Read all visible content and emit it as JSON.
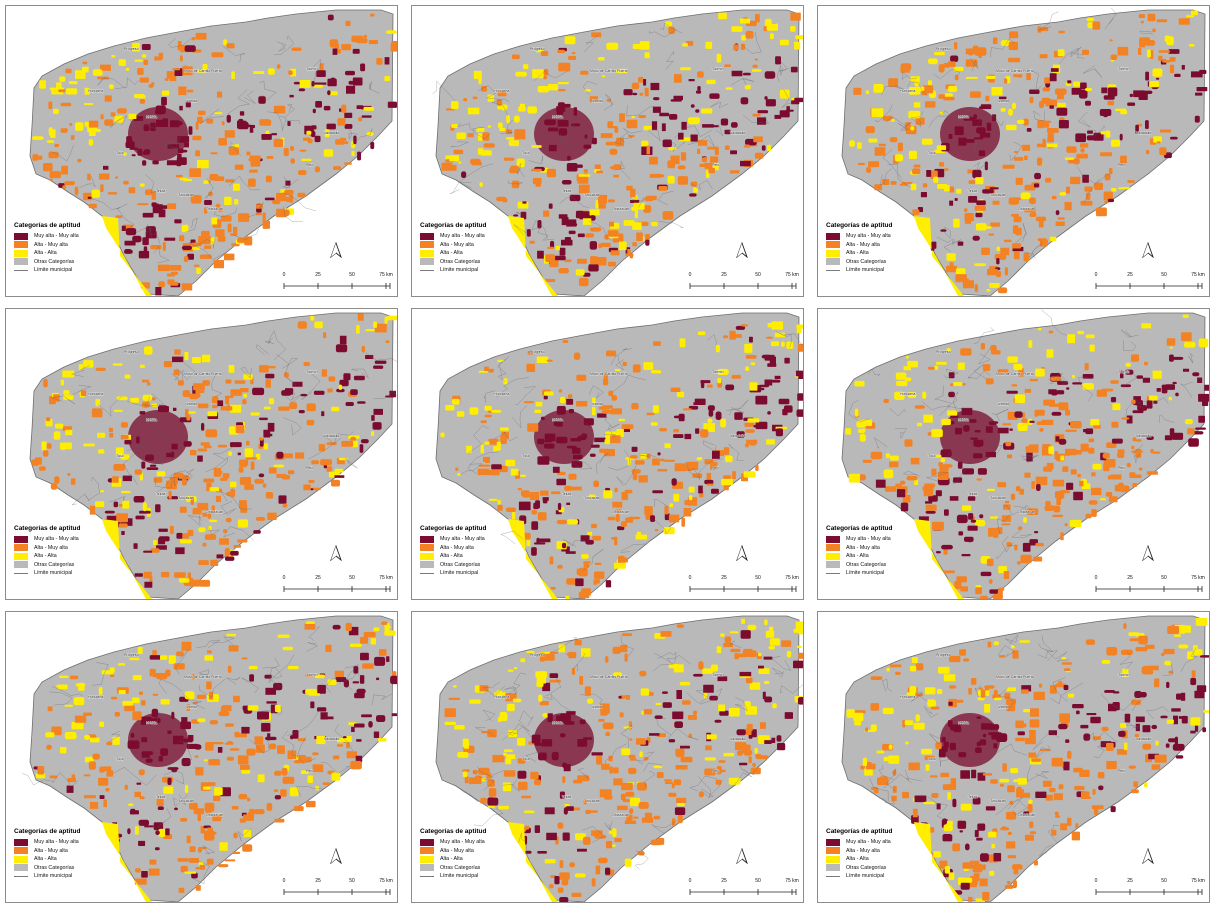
{
  "legend": {
    "title": "Categorías de aptitud",
    "items": [
      {
        "label": "Muy alta - Muy alta",
        "color": "#7b0c2f"
      },
      {
        "label": "Alta - Muy alta",
        "color": "#f28224"
      },
      {
        "label": "Alta - Alta",
        "color": "#ffee00"
      },
      {
        "label": "Otras Categorías",
        "color": "#b9b9b9"
      }
    ],
    "boundary_label": "Límite municipal"
  },
  "scale_bar": {
    "ticks": [
      "0",
      "25",
      "50",
      "75 km"
    ]
  },
  "map_labels": [
    "Progreso",
    "Motul de Carrillo Puerto",
    "Tizimín",
    "Hunucmá",
    "Mérida",
    "Izamal",
    "Valladolid",
    "Peto",
    "Tekax",
    "Tzucacab",
    "Ticul",
    "Oxkutzcab"
  ],
  "colors": {
    "muy_alta": "#7b0c2f",
    "alta_muy_alta": "#f28224",
    "alta_alta": "#ffee00",
    "otras": "#b9b9b9",
    "outline": "#6e6e6e"
  },
  "icons": {
    "north_arrow": "north-arrow-icon"
  }
}
